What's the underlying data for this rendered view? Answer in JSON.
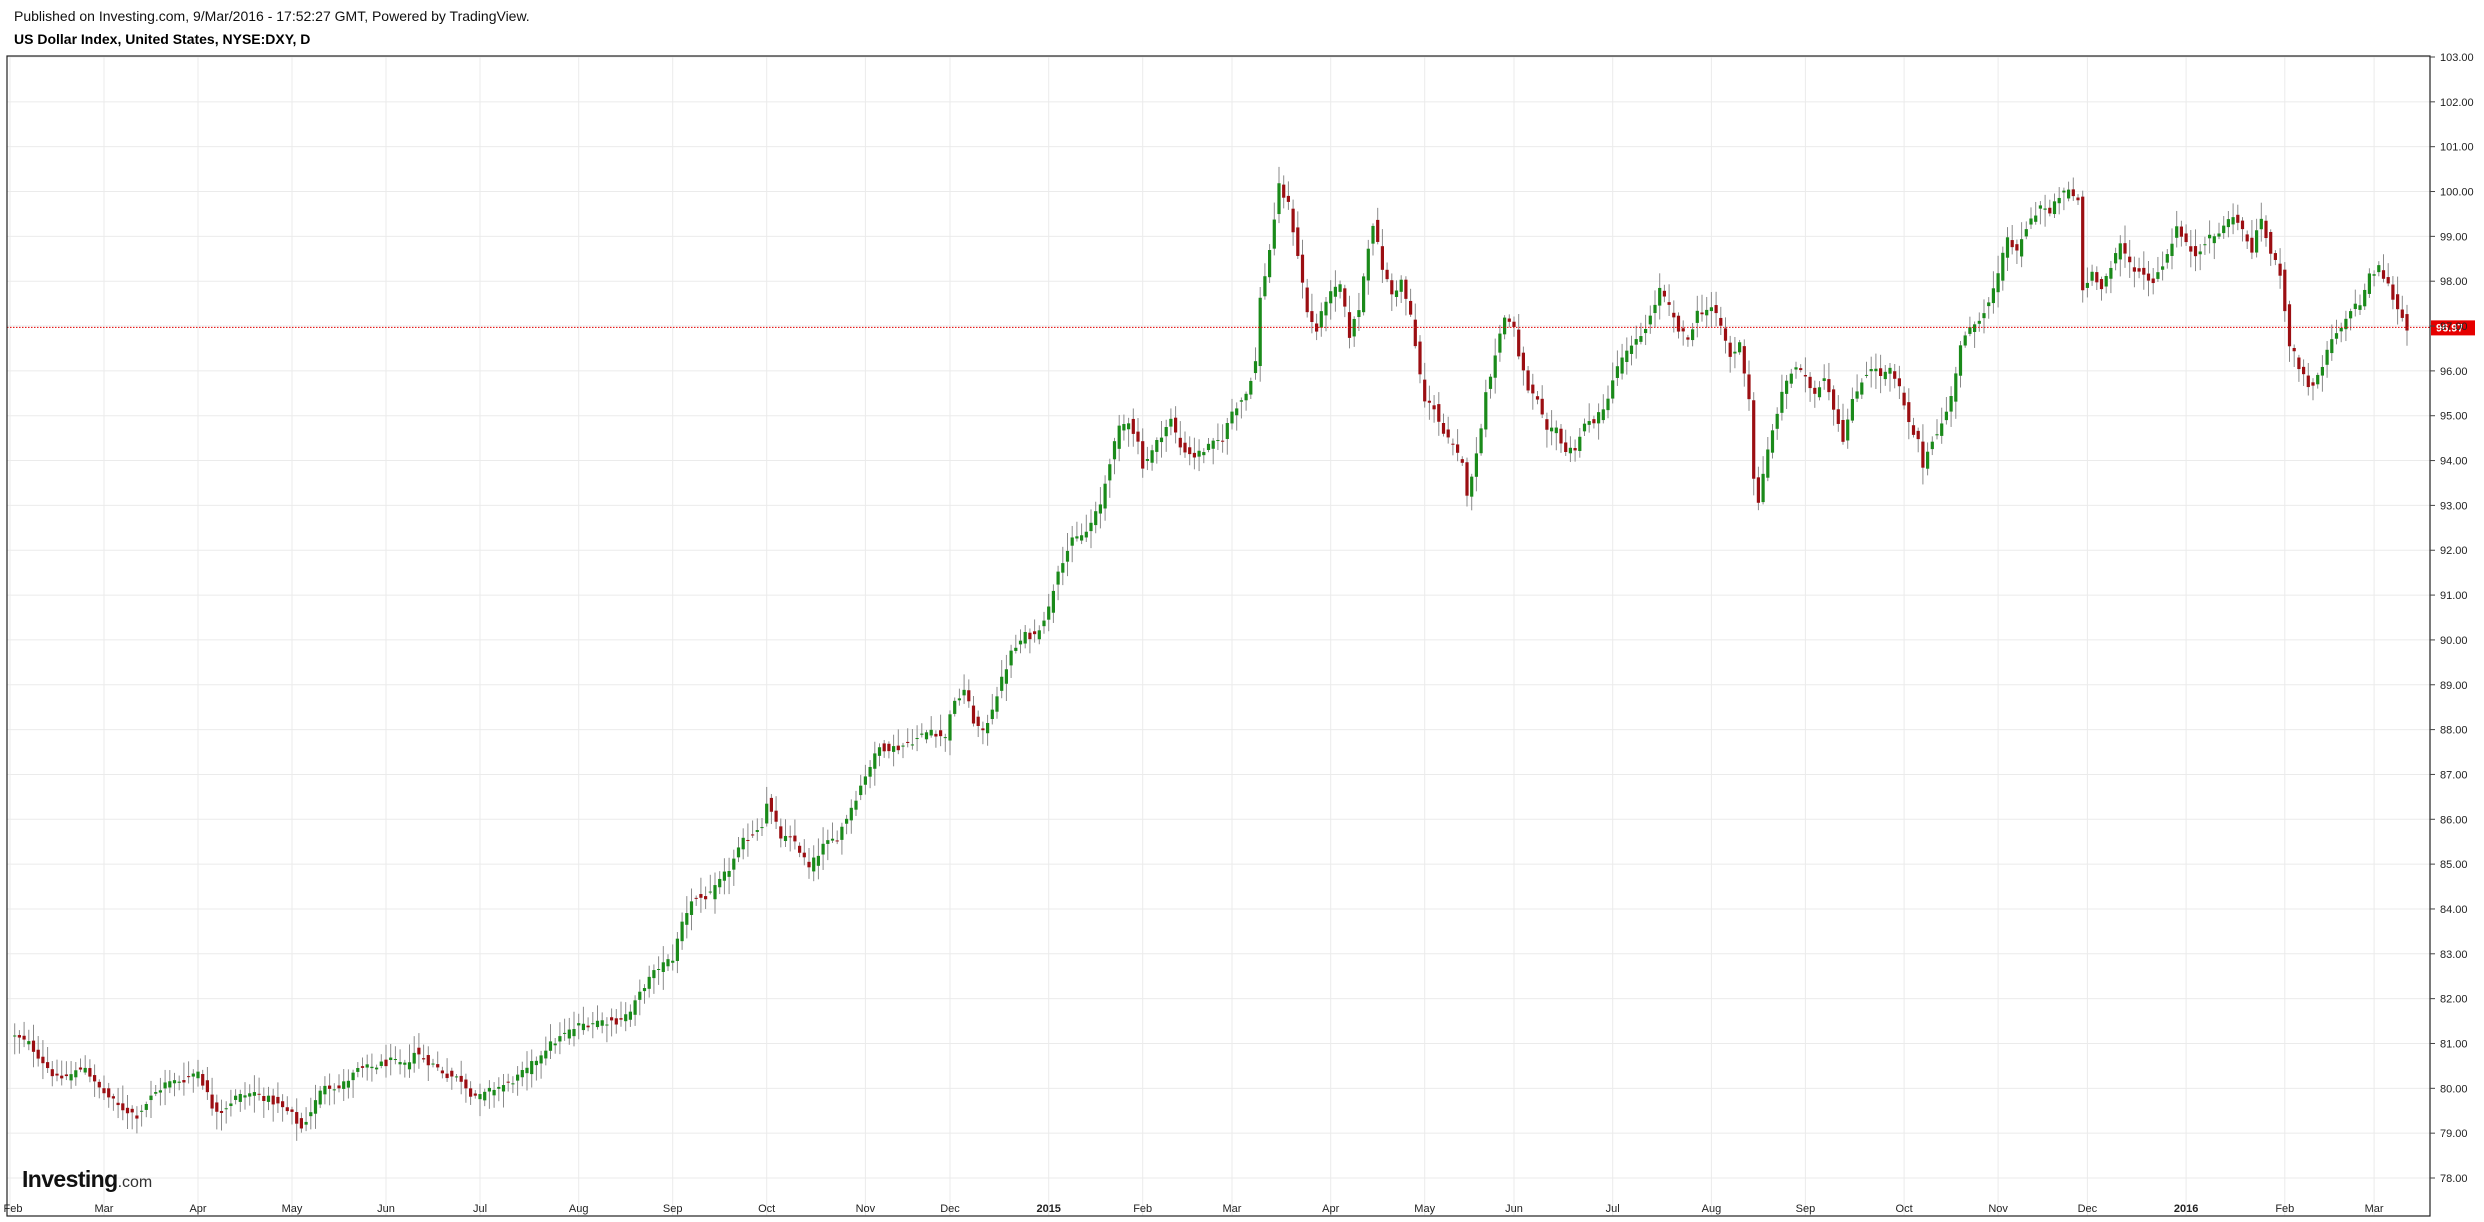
{
  "header": {
    "published": "Published on Investing.com, 9/Mar/2016 - 17:52:27 GMT, Powered by TradingView.",
    "symbol": "US Dollar Index, United States, NYSE:DXY, D"
  },
  "logo": {
    "brand": "Investing",
    "domain": ".com"
  },
  "colors": {
    "up": "#1a8a1a",
    "down": "#9b0e12",
    "wick": "#8a8a8a",
    "grid": "#ebebeb",
    "last_price": "#e60000"
  },
  "chart_data": {
    "type": "candlestick",
    "interval": "D",
    "ylim": [
      77.6,
      103.0
    ],
    "y_ticks": [
      "78.00",
      "79.00",
      "80.00",
      "81.00",
      "82.00",
      "83.00",
      "84.00",
      "85.00",
      "86.00",
      "87.00",
      "88.00",
      "89.00",
      "90.00",
      "91.00",
      "92.00",
      "93.00",
      "94.00",
      "95.00",
      "96.00",
      "97.00",
      "98.00",
      "99.00",
      "100.00",
      "101.00",
      "102.00",
      "103.00"
    ],
    "x_ticks": [
      {
        "label": "Feb",
        "bold": false,
        "i": 0
      },
      {
        "label": "Mar",
        "bold": false,
        "i": 20
      },
      {
        "label": "Apr",
        "bold": false,
        "i": 40
      },
      {
        "label": "May",
        "bold": false,
        "i": 60
      },
      {
        "label": "Jun",
        "bold": false,
        "i": 80
      },
      {
        "label": "Jul",
        "bold": false,
        "i": 100
      },
      {
        "label": "Aug",
        "bold": false,
        "i": 121
      },
      {
        "label": "Sep",
        "bold": false,
        "i": 141
      },
      {
        "label": "Oct",
        "bold": false,
        "i": 161
      },
      {
        "label": "Nov",
        "bold": false,
        "i": 182
      },
      {
        "label": "Dec",
        "bold": false,
        "i": 200
      },
      {
        "label": "2015",
        "bold": true,
        "i": 221
      },
      {
        "label": "Feb",
        "bold": false,
        "i": 241
      },
      {
        "label": "Mar",
        "bold": false,
        "i": 260
      },
      {
        "label": "Apr",
        "bold": false,
        "i": 281
      },
      {
        "label": "May",
        "bold": false,
        "i": 301
      },
      {
        "label": "Jun",
        "bold": false,
        "i": 320
      },
      {
        "label": "Jul",
        "bold": false,
        "i": 341
      },
      {
        "label": "Aug",
        "bold": false,
        "i": 362
      },
      {
        "label": "Sep",
        "bold": false,
        "i": 382
      },
      {
        "label": "Oct",
        "bold": false,
        "i": 403
      },
      {
        "label": "Nov",
        "bold": false,
        "i": 423
      },
      {
        "label": "Dec",
        "bold": false,
        "i": 442
      },
      {
        "label": "2016",
        "bold": true,
        "i": 463
      },
      {
        "label": "Feb",
        "bold": false,
        "i": 484
      },
      {
        "label": "Mar",
        "bold": false,
        "i": 503
      }
    ],
    "last_price": 96.97,
    "last_price_label": "96.97",
    "close_path": [
      [
        0,
        81.2
      ],
      [
        4,
        81.0
      ],
      [
        7,
        80.6
      ],
      [
        10,
        80.2
      ],
      [
        13,
        80.3
      ],
      [
        16,
        80.5
      ],
      [
        18,
        80.1
      ],
      [
        20,
        79.9
      ],
      [
        23,
        79.6
      ],
      [
        27,
        79.4
      ],
      [
        30,
        79.8
      ],
      [
        33,
        80.1
      ],
      [
        37,
        80.2
      ],
      [
        40,
        80.4
      ],
      [
        43,
        79.6
      ],
      [
        45,
        79.5
      ],
      [
        48,
        79.8
      ],
      [
        52,
        79.9
      ],
      [
        56,
        79.7
      ],
      [
        60,
        79.4
      ],
      [
        62,
        79.1
      ],
      [
        64,
        79.5
      ],
      [
        67,
        80.1
      ],
      [
        70,
        80.0
      ],
      [
        74,
        80.4
      ],
      [
        78,
        80.5
      ],
      [
        81,
        80.6
      ],
      [
        84,
        80.5
      ],
      [
        86,
        80.8
      ],
      [
        89,
        80.6
      ],
      [
        93,
        80.3
      ],
      [
        96,
        80.2
      ],
      [
        98,
        79.9
      ],
      [
        100,
        79.8
      ],
      [
        103,
        80.0
      ],
      [
        106,
        80.1
      ],
      [
        110,
        80.4
      ],
      [
        114,
        80.9
      ],
      [
        118,
        81.2
      ],
      [
        121,
        81.4
      ],
      [
        125,
        81.5
      ],
      [
        129,
        81.5
      ],
      [
        132,
        81.7
      ],
      [
        135,
        82.3
      ],
      [
        138,
        82.7
      ],
      [
        141,
        82.9
      ],
      [
        143,
        83.7
      ],
      [
        145,
        84.2
      ],
      [
        149,
        84.3
      ],
      [
        153,
        84.9
      ],
      [
        156,
        85.5
      ],
      [
        160,
        85.9
      ],
      [
        161,
        86.4
      ],
      [
        164,
        85.6
      ],
      [
        167,
        85.5
      ],
      [
        170,
        84.9
      ],
      [
        173,
        85.4
      ],
      [
        176,
        85.6
      ],
      [
        180,
        86.5
      ],
      [
        182,
        87.0
      ],
      [
        185,
        87.6
      ],
      [
        189,
        87.6
      ],
      [
        193,
        87.8
      ],
      [
        196,
        88.0
      ],
      [
        199,
        87.8
      ],
      [
        200,
        88.4
      ],
      [
        203,
        88.9
      ],
      [
        205,
        88.2
      ],
      [
        207,
        87.9
      ],
      [
        210,
        88.8
      ],
      [
        213,
        89.7
      ],
      [
        216,
        90.1
      ],
      [
        218,
        90.1
      ],
      [
        221,
        90.7
      ],
      [
        223,
        91.6
      ],
      [
        226,
        92.2
      ],
      [
        229,
        92.4
      ],
      [
        232,
        93.0
      ],
      [
        234,
        94.0
      ],
      [
        236,
        94.7
      ],
      [
        238,
        94.9
      ],
      [
        240,
        94.4
      ],
      [
        241,
        93.9
      ],
      [
        243,
        94.2
      ],
      [
        245,
        94.6
      ],
      [
        247,
        94.9
      ],
      [
        249,
        94.3
      ],
      [
        252,
        94.1
      ],
      [
        255,
        94.3
      ],
      [
        258,
        94.5
      ],
      [
        260,
        95.1
      ],
      [
        263,
        95.5
      ],
      [
        265,
        96.2
      ],
      [
        266,
        97.6
      ],
      [
        268,
        98.7
      ],
      [
        269,
        99.4
      ],
      [
        270,
        100.1
      ],
      [
        272,
        99.7
      ],
      [
        274,
        98.6
      ],
      [
        276,
        97.3
      ],
      [
        278,
        96.9
      ],
      [
        280,
        97.6
      ],
      [
        283,
        97.9
      ],
      [
        285,
        96.8
      ],
      [
        287,
        97.4
      ],
      [
        289,
        98.8
      ],
      [
        290,
        99.3
      ],
      [
        292,
        98.3
      ],
      [
        294,
        97.7
      ],
      [
        296,
        98.0
      ],
      [
        298,
        97.2
      ],
      [
        300,
        95.9
      ],
      [
        301,
        95.3
      ],
      [
        303,
        95.2
      ],
      [
        305,
        94.6
      ],
      [
        307,
        94.3
      ],
      [
        309,
        93.9
      ],
      [
        310,
        93.3
      ],
      [
        312,
        94.1
      ],
      [
        314,
        95.5
      ],
      [
        316,
        96.4
      ],
      [
        318,
        97.2
      ],
      [
        320,
        97.0
      ],
      [
        321,
        96.3
      ],
      [
        323,
        95.6
      ],
      [
        325,
        95.3
      ],
      [
        327,
        94.6
      ],
      [
        329,
        94.7
      ],
      [
        331,
        94.2
      ],
      [
        333,
        94.3
      ],
      [
        335,
        94.8
      ],
      [
        337,
        94.9
      ],
      [
        339,
        95.1
      ],
      [
        341,
        95.8
      ],
      [
        343,
        96.3
      ],
      [
        345,
        96.5
      ],
      [
        347,
        96.8
      ],
      [
        349,
        97.2
      ],
      [
        351,
        97.8
      ],
      [
        353,
        97.4
      ],
      [
        355,
        96.9
      ],
      [
        357,
        96.7
      ],
      [
        359,
        97.3
      ],
      [
        362,
        97.4
      ],
      [
        364,
        97.0
      ],
      [
        366,
        96.3
      ],
      [
        368,
        96.6
      ],
      [
        370,
        95.4
      ],
      [
        371,
        93.6
      ],
      [
        372,
        93.1
      ],
      [
        374,
        94.2
      ],
      [
        376,
        95.1
      ],
      [
        378,
        95.8
      ],
      [
        380,
        96.1
      ],
      [
        382,
        95.8
      ],
      [
        384,
        95.5
      ],
      [
        386,
        95.9
      ],
      [
        388,
        95.2
      ],
      [
        390,
        94.5
      ],
      [
        392,
        95.3
      ],
      [
        394,
        95.8
      ],
      [
        396,
        96.1
      ],
      [
        398,
        95.9
      ],
      [
        400,
        96.0
      ],
      [
        402,
        95.6
      ],
      [
        404,
        94.8
      ],
      [
        406,
        94.4
      ],
      [
        407,
        93.9
      ],
      [
        409,
        94.5
      ],
      [
        411,
        94.8
      ],
      [
        413,
        95.4
      ],
      [
        415,
        96.6
      ],
      [
        417,
        96.9
      ],
      [
        419,
        97.2
      ],
      [
        421,
        97.5
      ],
      [
        423,
        98.1
      ],
      [
        425,
        99.0
      ],
      [
        427,
        98.6
      ],
      [
        429,
        99.2
      ],
      [
        432,
        99.7
      ],
      [
        434,
        99.5
      ],
      [
        436,
        99.9
      ],
      [
        438,
        100.0
      ],
      [
        440,
        99.8
      ],
      [
        441,
        97.8
      ],
      [
        443,
        98.2
      ],
      [
        445,
        97.9
      ],
      [
        447,
        98.3
      ],
      [
        449,
        98.8
      ],
      [
        451,
        98.4
      ],
      [
        453,
        98.2
      ],
      [
        456,
        98.0
      ],
      [
        459,
        98.6
      ],
      [
        461,
        99.2
      ],
      [
        463,
        98.8
      ],
      [
        465,
        98.6
      ],
      [
        467,
        98.9
      ],
      [
        469,
        99.0
      ],
      [
        471,
        99.2
      ],
      [
        473,
        99.5
      ],
      [
        475,
        99.1
      ],
      [
        477,
        98.7
      ],
      [
        479,
        99.4
      ],
      [
        481,
        98.6
      ],
      [
        483,
        98.2
      ],
      [
        484,
        97.4
      ],
      [
        485,
        96.6
      ],
      [
        487,
        96.1
      ],
      [
        489,
        95.7
      ],
      [
        490,
        95.6
      ],
      [
        492,
        96.1
      ],
      [
        494,
        96.7
      ],
      [
        496,
        96.9
      ],
      [
        498,
        97.4
      ],
      [
        500,
        97.5
      ],
      [
        502,
        98.1
      ],
      [
        504,
        98.3
      ],
      [
        506,
        97.9
      ],
      [
        508,
        97.4
      ],
      [
        510,
        96.97
      ]
    ]
  }
}
